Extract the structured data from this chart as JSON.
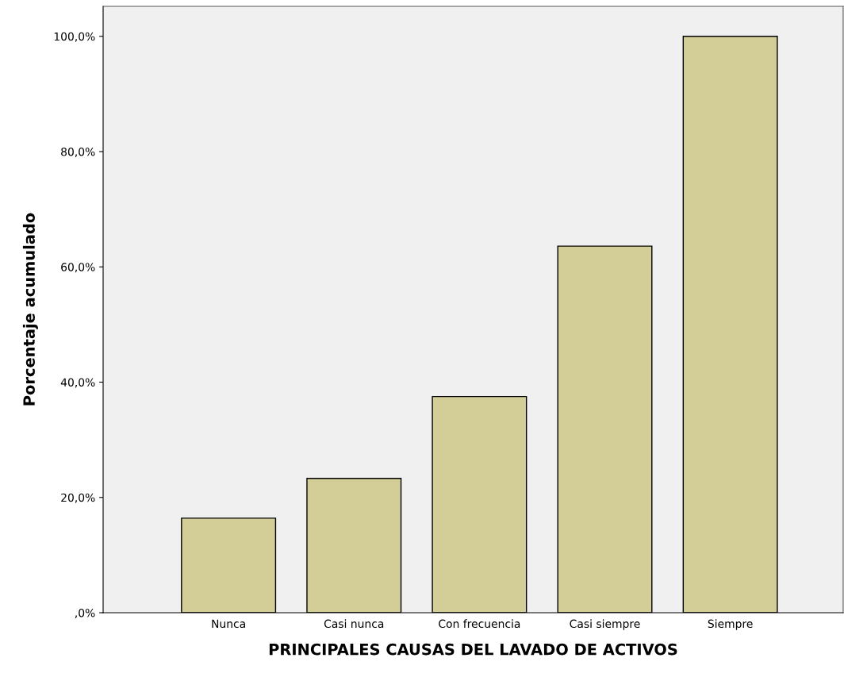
{
  "chart_data": {
    "type": "bar",
    "xlabel": "PRINCIPALES CAUSAS DEL LAVADO DE ACTIVOS",
    "ylabel": "Porcentaje acumulado",
    "categories": [
      "Nunca",
      "Casi nunca",
      "Con frecuencia",
      "Casi siempre",
      "Siempre"
    ],
    "values": [
      16.4,
      23.3,
      37.5,
      63.6,
      100.0
    ],
    "color": "#d3ce97",
    "ylim": [
      0,
      105.2
    ],
    "yticks": [
      {
        "value": 0,
        "label": ",0%"
      },
      {
        "value": 20,
        "label": "20,0%"
      },
      {
        "value": 40,
        "label": "40,0%"
      },
      {
        "value": 60,
        "label": "60,0%"
      },
      {
        "value": 80,
        "label": "80,0%"
      },
      {
        "value": 100,
        "label": "100,0%"
      }
    ],
    "grid": false,
    "legend": false
  }
}
